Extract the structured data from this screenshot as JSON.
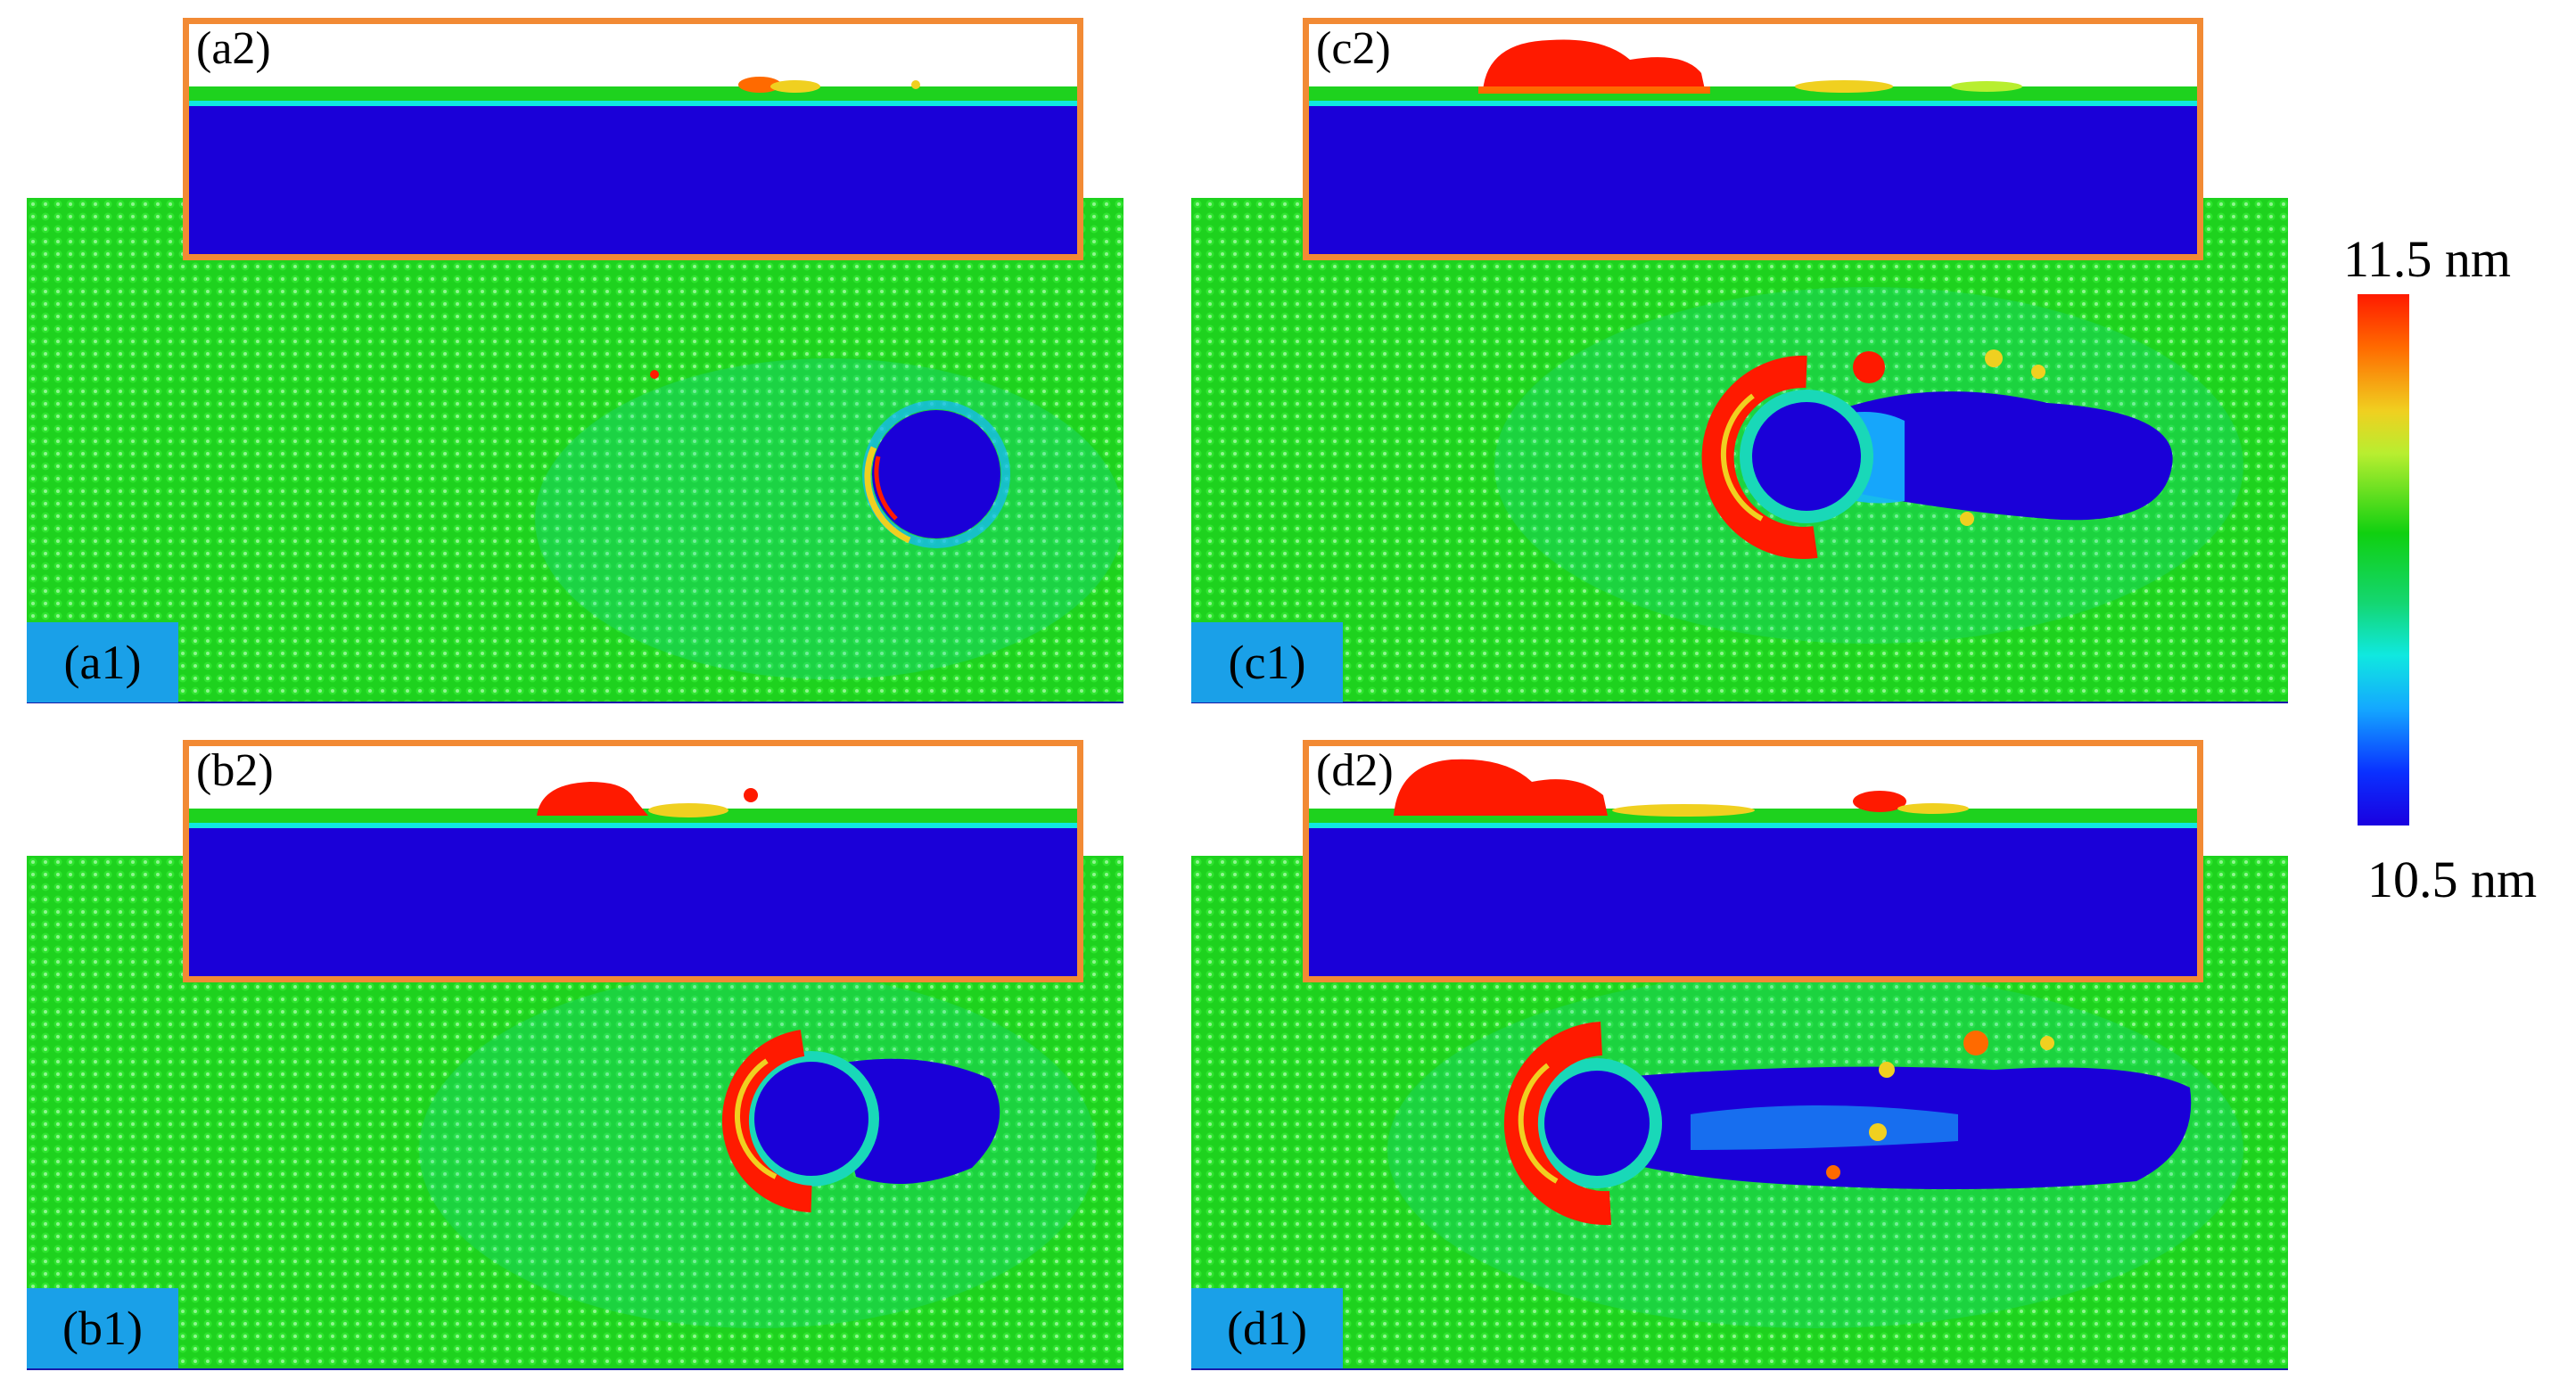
{
  "panels": [
    {
      "id": "a",
      "top_label": "(a1)",
      "inset_label": "(a2)",
      "stage": 1
    },
    {
      "id": "c",
      "top_label": "(c1)",
      "inset_label": "(c2)",
      "stage": 3
    },
    {
      "id": "b",
      "top_label": "(b1)",
      "inset_label": "(b2)",
      "stage": 2
    },
    {
      "id": "d",
      "top_label": "(d1)",
      "inset_label": "(d2)",
      "stage": 4
    }
  ],
  "colorbar": {
    "max_label": "11.5 nm",
    "min_label": "10.5 nm"
  },
  "colors": {
    "surface": "#1ed21e",
    "high": "#ff1a00",
    "low": "#1a00d8",
    "inset_border": "#f28a34",
    "tag_background": "#1aa0e8"
  }
}
